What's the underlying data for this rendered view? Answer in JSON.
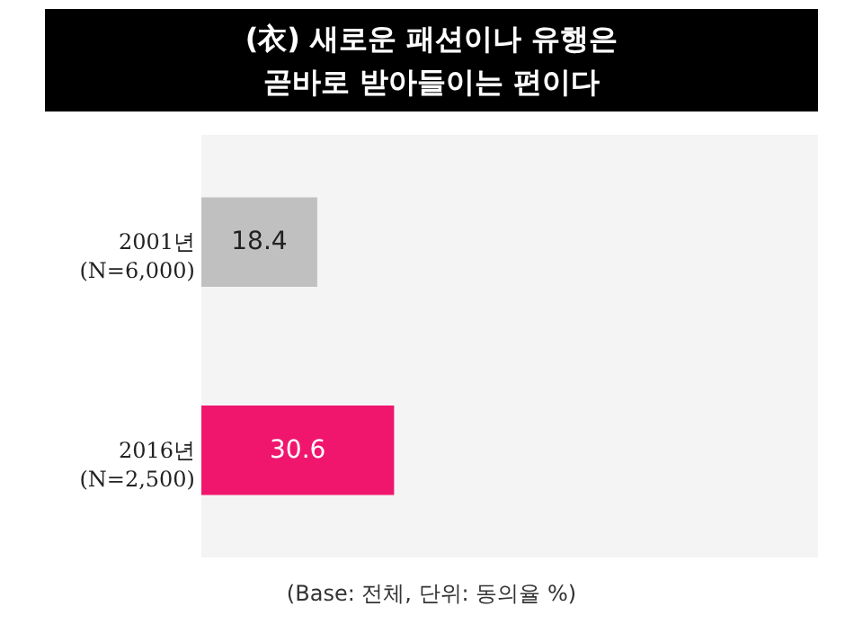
{
  "chart_data": {
    "type": "bar",
    "orientation": "horizontal",
    "data_labels": true,
    "title": "(衣) 새로운 패션이나 유행은\n곧바로 받아들이는 편이다",
    "categories": [
      "2001년\n(N=6,000)",
      "2016년\n(N=2,500)"
    ],
    "values": [
      18.4,
      30.6
    ],
    "colors": [
      "#c0c0c0",
      "#f0166e"
    ],
    "annotations": [
      "(Base: 전체, 단위: 동의율 %)"
    ]
  }
}
